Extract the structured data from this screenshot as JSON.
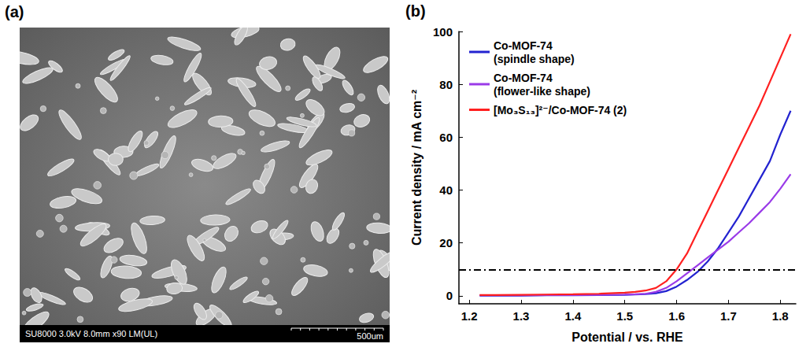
{
  "chart_data": {
    "type": "line",
    "panel": "(b)",
    "x_label": "Potential / vs. RHE",
    "y_label": "Current density / mA cm⁻²",
    "x": [
      1.22,
      1.25,
      1.3,
      1.35,
      1.4,
      1.45,
      1.5,
      1.52,
      1.54,
      1.56,
      1.58,
      1.6,
      1.62,
      1.64,
      1.66,
      1.68,
      1.7,
      1.72,
      1.74,
      1.76,
      1.78,
      1.8,
      1.82
    ],
    "series": [
      {
        "name": "Co-MOF-74 (spindle shape)",
        "color": "#2323d0",
        "values": [
          0.1,
          0.1,
          0.1,
          0.2,
          0.2,
          0.3,
          0.4,
          0.5,
          0.7,
          1.0,
          1.8,
          3.5,
          6,
          9,
          13,
          18,
          24,
          30,
          37,
          44,
          51,
          61,
          70
        ]
      },
      {
        "name": "Co-MOF-74 (flower-like shape)",
        "color": "#9a3be8",
        "values": [
          0.2,
          0.2,
          0.2,
          0.3,
          0.3,
          0.4,
          0.5,
          0.6,
          0.8,
          1.5,
          3,
          5.5,
          8.5,
          11.5,
          14.5,
          17.5,
          20.5,
          24,
          27.5,
          31.5,
          35.5,
          40.5,
          46
        ]
      },
      {
        "name": "[Mo₃S₁₃]²⁻/Co-MOF-74 (2)",
        "color": "#ff2020",
        "values": [
          0.3,
          0.3,
          0.4,
          0.5,
          0.6,
          0.8,
          1.2,
          1.5,
          2,
          3,
          5.5,
          10,
          16,
          24,
          32,
          40,
          48,
          56,
          64,
          72,
          81,
          90,
          99
        ]
      }
    ],
    "xlim": [
      1.18,
      1.83
    ],
    "xticks": [
      1.2,
      1.3,
      1.4,
      1.5,
      1.6,
      1.7,
      1.8
    ],
    "ylim": [
      -3,
      100
    ],
    "yticks": [
      0,
      20,
      40,
      60,
      80,
      100
    ],
    "legend": "upper left",
    "hline": {
      "value": 10,
      "line_style": "dashdot",
      "color": "#000000"
    }
  },
  "image_panel": {
    "panel": "(a)",
    "info": "SU8000 3.0kV 8.0mm x90 LM(UL)",
    "scale_bar": "500um"
  }
}
